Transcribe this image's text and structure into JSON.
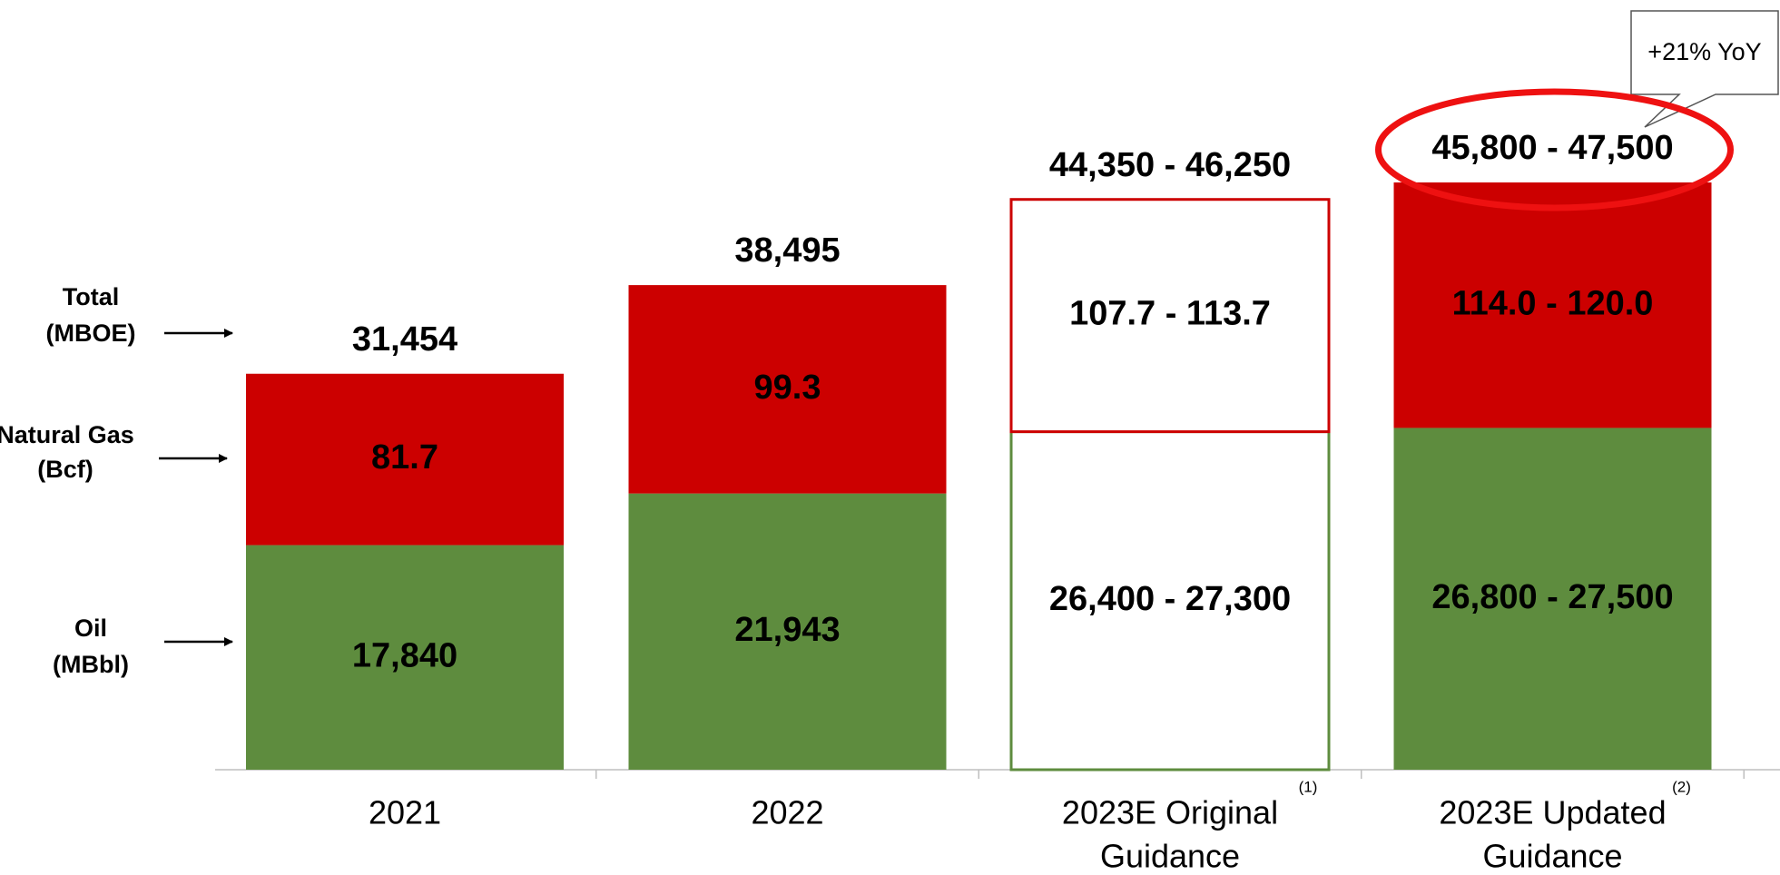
{
  "chart_data": {
    "type": "stacked_bar",
    "categories": [
      [
        "2021"
      ],
      [
        "2022"
      ],
      [
        "2023E Original",
        "Guidance"
      ],
      [
        "2023E Updated",
        "Guidance"
      ]
    ],
    "footnotes": [
      null,
      null,
      "(1)",
      "(2)"
    ],
    "outlined": [
      false,
      false,
      true,
      false
    ],
    "series": [
      {
        "name": "Oil",
        "unit": "(MBbl)",
        "color": "#5e8c3e",
        "values": [
          17840,
          21943,
          [
            26400,
            27300
          ],
          [
            26800,
            27500
          ]
        ],
        "value_labels": [
          "17,840",
          "21,943",
          "26,400 - 27,300",
          "26,800 - 27,500"
        ]
      },
      {
        "name": "Natural Gas",
        "unit": "(Bcf)",
        "color": "#cc0000",
        "values": [
          81.7,
          99.3,
          [
            107.7,
            113.7
          ],
          [
            114.0,
            120.0
          ]
        ],
        "value_labels": [
          "81.7",
          "99.3",
          "107.7 - 113.7",
          "114.0 - 120.0"
        ]
      }
    ],
    "totals": {
      "name": "Total",
      "unit": "(MBOE)",
      "values": [
        31454,
        38495,
        [
          44350,
          46250
        ],
        [
          45800,
          47500
        ]
      ],
      "value_labels": [
        "31,454",
        "38,495",
        "44,350 - 46,250",
        "45,800 - 47,500"
      ]
    },
    "highlight": {
      "index": 3,
      "annotation": "+21% YoY",
      "color": "#ee1111"
    }
  }
}
